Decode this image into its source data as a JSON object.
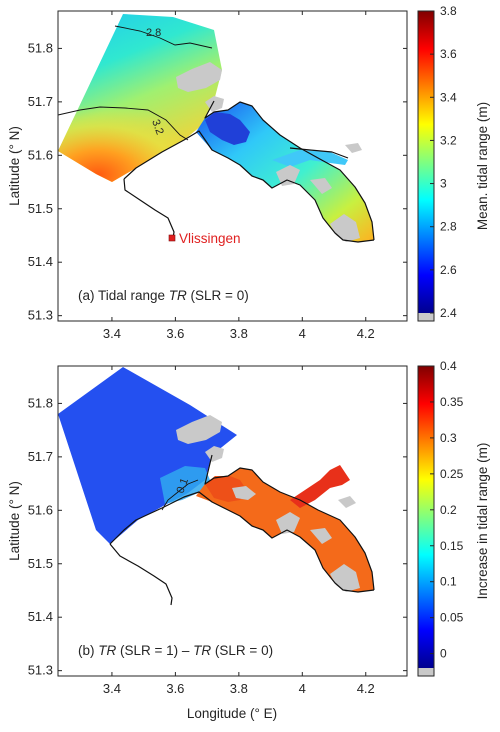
{
  "chart_data": [
    {
      "type": "heatmap",
      "title": "",
      "caption": {
        "prefix": "(a) Tidal range ",
        "italic": "TR",
        "suffix": " (SLR = 0)"
      },
      "xlabel": "",
      "ylabel": "Latitude (° N)",
      "xlim": [
        3.23,
        4.33
      ],
      "ylim": [
        51.29,
        51.87
      ],
      "xticks": [
        "3.4",
        "3.6",
        "3.8",
        "4",
        "4.2"
      ],
      "yticks": [
        "51.3",
        "51.4",
        "51.5",
        "51.6",
        "51.7",
        "51.8"
      ],
      "colorbar": {
        "label": "Mean. tidal range (m)",
        "range": [
          2.4,
          3.8
        ],
        "ticks": [
          "2.4",
          "2.6",
          "2.8",
          "3",
          "3.2",
          "3.4",
          "3.6",
          "3.8"
        ]
      },
      "contour_labels": [
        "2.8",
        "3.2"
      ],
      "station": {
        "name": "Vlissingen",
        "lon": 3.58,
        "lat": 51.445
      }
    },
    {
      "type": "heatmap",
      "title": "",
      "caption": {
        "italic1": "TR",
        "part1": " (SLR = 1) – ",
        "italic2": "TR",
        "part2": " (SLR = 0)",
        "prefix": "(b) "
      },
      "xlabel": "Longitude (° E)",
      "ylabel": "Latitude (° N)",
      "xlim": [
        3.23,
        4.33
      ],
      "ylim": [
        51.29,
        51.87
      ],
      "xticks": [
        "3.4",
        "3.6",
        "3.8",
        "4",
        "4.2"
      ],
      "yticks": [
        "51.3",
        "51.4",
        "51.5",
        "51.6",
        "51.7",
        "51.8"
      ],
      "colorbar": {
        "label": "Increase in tidal range (m)",
        "range": [
          -0.02,
          0.4
        ],
        "ticks": [
          "0",
          "0.05",
          "0.1",
          "0.15",
          "0.2",
          "0.25",
          "0.3",
          "0.35",
          "0.4"
        ]
      },
      "contour_labels": [
        "0.1"
      ]
    }
  ],
  "colors": {
    "land": "#c9c9c9",
    "station": "#e02020"
  }
}
